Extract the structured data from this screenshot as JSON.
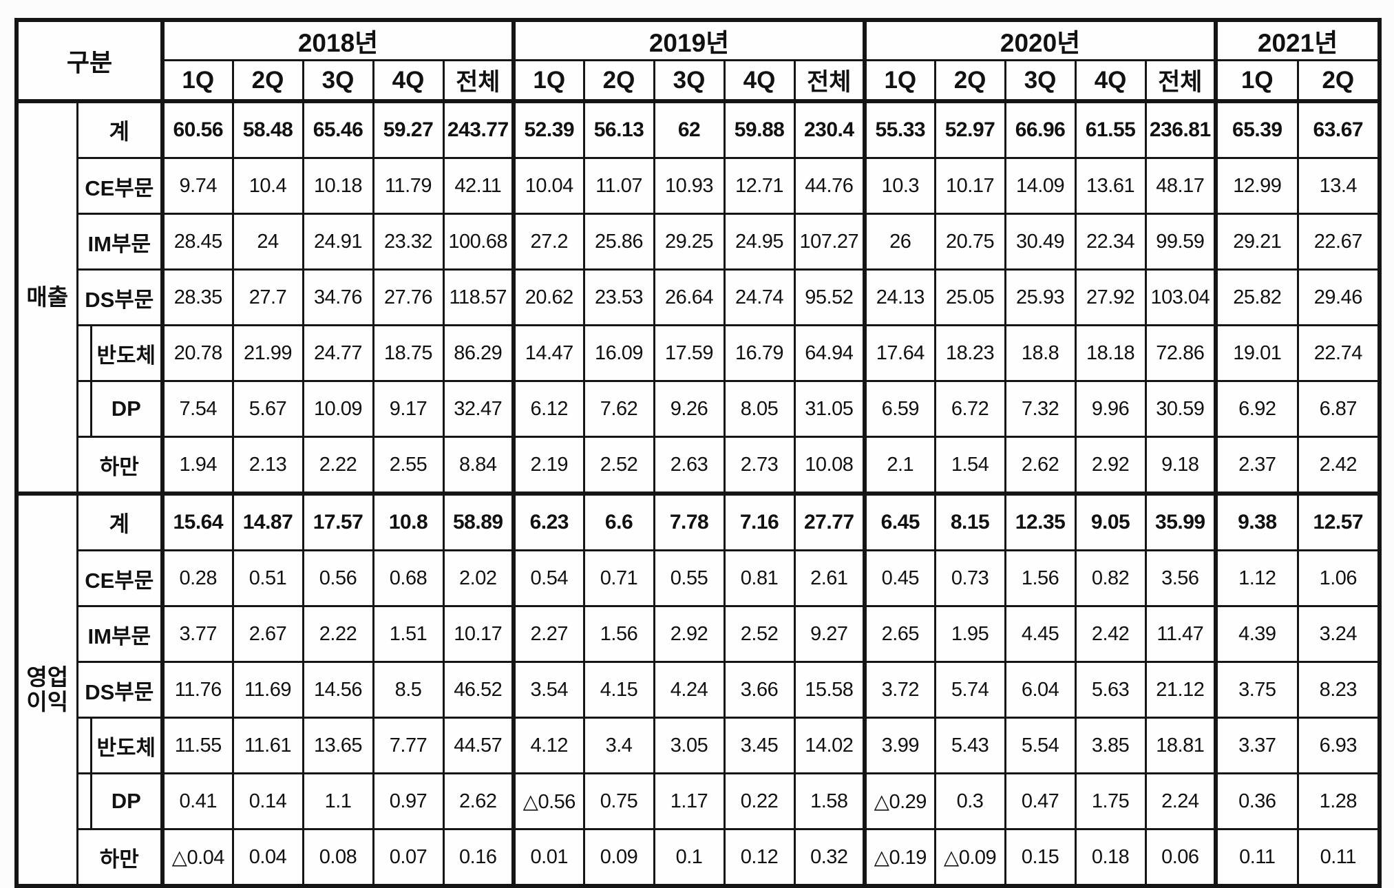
{
  "header": {
    "gubun": "구분",
    "years": [
      {
        "label": "2018년",
        "quarters": [
          "1Q",
          "2Q",
          "3Q",
          "4Q",
          "전체"
        ]
      },
      {
        "label": "2019년",
        "quarters": [
          "1Q",
          "2Q",
          "3Q",
          "4Q",
          "전체"
        ]
      },
      {
        "label": "2020년",
        "quarters": [
          "1Q",
          "2Q",
          "3Q",
          "4Q",
          "전체"
        ]
      },
      {
        "label": "2021년",
        "quarters": [
          "1Q",
          "2Q"
        ]
      }
    ]
  },
  "sections": [
    {
      "group": "매출",
      "rows": [
        {
          "label": "계",
          "indent": false,
          "bold": true,
          "values": [
            "60.56",
            "58.48",
            "65.46",
            "59.27",
            "243.77",
            "52.39",
            "56.13",
            "62",
            "59.88",
            "230.4",
            "55.33",
            "52.97",
            "66.96",
            "61.55",
            "236.81",
            "65.39",
            "63.67"
          ]
        },
        {
          "label": "CE부문",
          "indent": false,
          "bold": false,
          "values": [
            "9.74",
            "10.4",
            "10.18",
            "11.79",
            "42.11",
            "10.04",
            "11.07",
            "10.93",
            "12.71",
            "44.76",
            "10.3",
            "10.17",
            "14.09",
            "13.61",
            "48.17",
            "12.99",
            "13.4"
          ]
        },
        {
          "label": "IM부문",
          "indent": false,
          "bold": false,
          "values": [
            "28.45",
            "24",
            "24.91",
            "23.32",
            "100.68",
            "27.2",
            "25.86",
            "29.25",
            "24.95",
            "107.27",
            "26",
            "20.75",
            "30.49",
            "22.34",
            "99.59",
            "29.21",
            "22.67"
          ]
        },
        {
          "label": "DS부문",
          "indent": false,
          "bold": false,
          "values": [
            "28.35",
            "27.7",
            "34.76",
            "27.76",
            "118.57",
            "20.62",
            "23.53",
            "26.64",
            "24.74",
            "95.52",
            "24.13",
            "25.05",
            "25.93",
            "27.92",
            "103.04",
            "25.82",
            "29.46"
          ]
        },
        {
          "label": "반도체",
          "indent": true,
          "bold": false,
          "values": [
            "20.78",
            "21.99",
            "24.77",
            "18.75",
            "86.29",
            "14.47",
            "16.09",
            "17.59",
            "16.79",
            "64.94",
            "17.64",
            "18.23",
            "18.8",
            "18.18",
            "72.86",
            "19.01",
            "22.74"
          ]
        },
        {
          "label": "DP",
          "indent": true,
          "bold": false,
          "values": [
            "7.54",
            "5.67",
            "10.09",
            "9.17",
            "32.47",
            "6.12",
            "7.62",
            "9.26",
            "8.05",
            "31.05",
            "6.59",
            "6.72",
            "7.32",
            "9.96",
            "30.59",
            "6.92",
            "6.87"
          ]
        },
        {
          "label": "하만",
          "indent": false,
          "bold": false,
          "values": [
            "1.94",
            "2.13",
            "2.22",
            "2.55",
            "8.84",
            "2.19",
            "2.52",
            "2.63",
            "2.73",
            "10.08",
            "2.1",
            "1.54",
            "2.62",
            "2.92",
            "9.18",
            "2.37",
            "2.42"
          ]
        }
      ]
    },
    {
      "group": "영업이익",
      "rows": [
        {
          "label": "계",
          "indent": false,
          "bold": true,
          "values": [
            "15.64",
            "14.87",
            "17.57",
            "10.8",
            "58.89",
            "6.23",
            "6.6",
            "7.78",
            "7.16",
            "27.77",
            "6.45",
            "8.15",
            "12.35",
            "9.05",
            "35.99",
            "9.38",
            "12.57"
          ]
        },
        {
          "label": "CE부문",
          "indent": false,
          "bold": false,
          "values": [
            "0.28",
            "0.51",
            "0.56",
            "0.68",
            "2.02",
            "0.54",
            "0.71",
            "0.55",
            "0.81",
            "2.61",
            "0.45",
            "0.73",
            "1.56",
            "0.82",
            "3.56",
            "1.12",
            "1.06"
          ]
        },
        {
          "label": "IM부문",
          "indent": false,
          "bold": false,
          "values": [
            "3.77",
            "2.67",
            "2.22",
            "1.51",
            "10.17",
            "2.27",
            "1.56",
            "2.92",
            "2.52",
            "9.27",
            "2.65",
            "1.95",
            "4.45",
            "2.42",
            "11.47",
            "4.39",
            "3.24"
          ]
        },
        {
          "label": "DS부문",
          "indent": false,
          "bold": false,
          "values": [
            "11.76",
            "11.69",
            "14.56",
            "8.5",
            "46.52",
            "3.54",
            "4.15",
            "4.24",
            "3.66",
            "15.58",
            "3.72",
            "5.74",
            "6.04",
            "5.63",
            "21.12",
            "3.75",
            "8.23"
          ]
        },
        {
          "label": "반도체",
          "indent": true,
          "bold": false,
          "values": [
            "11.55",
            "11.61",
            "13.65",
            "7.77",
            "44.57",
            "4.12",
            "3.4",
            "3.05",
            "3.45",
            "14.02",
            "3.99",
            "5.43",
            "5.54",
            "3.85",
            "18.81",
            "3.37",
            "6.93"
          ]
        },
        {
          "label": "DP",
          "indent": true,
          "bold": false,
          "values": [
            "0.41",
            "0.14",
            "1.1",
            "0.97",
            "2.62",
            "△0.56",
            "0.75",
            "1.17",
            "0.22",
            "1.58",
            "△0.29",
            "0.3",
            "0.47",
            "1.75",
            "2.24",
            "0.36",
            "1.28"
          ]
        },
        {
          "label": "하만",
          "indent": false,
          "bold": false,
          "values": [
            "△0.04",
            "0.04",
            "0.08",
            "0.07",
            "0.16",
            "0.01",
            "0.09",
            "0.1",
            "0.12",
            "0.32",
            "△0.19",
            "△0.09",
            "0.15",
            "0.18",
            "0.06",
            "0.11",
            "0.11"
          ]
        }
      ]
    }
  ]
}
